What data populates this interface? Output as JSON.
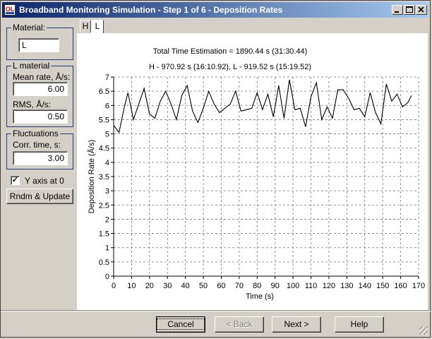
{
  "window": {
    "title": "Broadband Monitoring Simulation - Step 1 of 6 - Deposition Rates",
    "icon_text": "OL"
  },
  "material_group": {
    "label": "Material:",
    "value": "L"
  },
  "l_material_group": {
    "label": "L material",
    "mean_rate_label": "Mean rate, Å/s:",
    "mean_rate_value": "6.00",
    "rms_label": "RMS, Å/s:",
    "rms_value": "0.50"
  },
  "fluctuations_group": {
    "label": "Fluctuations",
    "corr_time_label": "Corr. time, s:",
    "corr_time_value": "3.00"
  },
  "y_axis_checkbox": {
    "label": "Y axis at 0",
    "checked": true
  },
  "rndm_button": {
    "label": "Rndm & Update"
  },
  "tabs": [
    {
      "label": "H"
    },
    {
      "label": "L",
      "active": true
    }
  ],
  "footer": {
    "cancel": "Cancel",
    "back": "< Back",
    "next": "Next >",
    "help": "Help"
  },
  "chart_data": {
    "type": "line",
    "title_line1": "Total Time Estimation = 1890.44 s (31:30.44)",
    "title_line2": "H - 970.92 s (16:10.92), L - 919.52 s (15:19.52)",
    "xlabel": "Time (s)",
    "ylabel": "Deposition Rate (Å/s)",
    "xlim": [
      0,
      170
    ],
    "ylim": [
      0,
      7
    ],
    "x_ticks": [
      0,
      10,
      20,
      30,
      40,
      50,
      60,
      70,
      80,
      90,
      100,
      110,
      120,
      130,
      140,
      150,
      160,
      170
    ],
    "y_ticks": [
      0,
      0.5,
      1,
      1.5,
      2,
      2.5,
      3,
      3.5,
      4,
      4.5,
      5,
      5.5,
      6,
      6.5,
      7
    ],
    "grid": true,
    "series": [
      {
        "x": [
          0,
          3,
          6,
          8,
          11,
          14,
          17,
          20,
          23,
          26,
          29,
          32,
          35,
          38,
          41,
          44,
          47,
          50,
          53,
          56,
          59,
          62,
          65,
          68,
          71,
          74,
          77,
          80,
          83,
          86,
          89,
          92,
          95,
          98,
          101,
          104,
          107,
          110,
          113,
          116,
          119,
          122,
          125,
          128,
          131,
          134,
          137,
          140,
          143,
          146,
          149,
          152,
          155,
          158,
          161,
          164,
          166
        ],
        "y": [
          5.3,
          5.05,
          5.95,
          6.45,
          5.5,
          6.05,
          6.6,
          5.7,
          5.55,
          6.15,
          6.5,
          6.05,
          5.5,
          6.35,
          6.7,
          5.8,
          5.4,
          5.9,
          6.5,
          6.05,
          5.75,
          5.9,
          6.05,
          6.5,
          5.8,
          5.85,
          5.9,
          6.45,
          5.85,
          6.4,
          5.6,
          6.7,
          5.55,
          6.9,
          5.85,
          5.9,
          5.25,
          6.3,
          6.8,
          5.5,
          5.95,
          5.55,
          6.55,
          6.55,
          6.25,
          5.85,
          5.9,
          5.6,
          6.45,
          5.75,
          5.35,
          6.75,
          6.15,
          6.4,
          5.95,
          6.1,
          6.35
        ],
        "color": "#000000"
      }
    ]
  }
}
